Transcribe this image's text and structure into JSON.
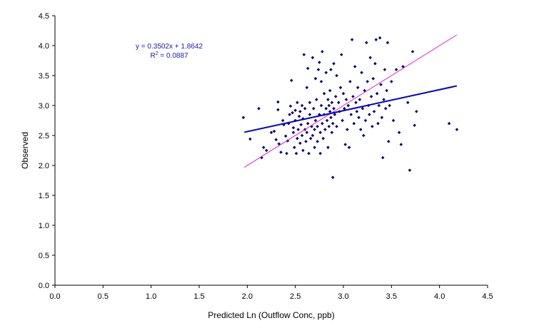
{
  "chart_data": {
    "type": "scatter",
    "title": "",
    "xlabel": "Predicted Ln (Outflow Conc, ppb)",
    "ylabel": "Observed",
    "xlim": [
      0,
      4.5
    ],
    "ylim": [
      0,
      4.5
    ],
    "x_ticks": [
      "0.0",
      "0.5",
      "1.0",
      "1.5",
      "2.0",
      "2.5",
      "3.0",
      "3.5",
      "4.0",
      "4.5"
    ],
    "y_ticks": [
      "0.0",
      "0.5",
      "1.0",
      "1.5",
      "2.0",
      "2.5",
      "3.0",
      "3.5",
      "4.0",
      "4.5"
    ],
    "grid": false,
    "legend": "none",
    "annotation": {
      "equation": "y = 0.3502x + 1.8642",
      "r2_prefix": "R",
      "r2_exp": "2",
      "r2_value": " = 0.0887"
    },
    "trendline": {
      "slope": 0.3502,
      "intercept": 1.8642,
      "x_range": [
        1.97,
        4.18
      ],
      "color": "#0000cc"
    },
    "identity_line": {
      "x_range": [
        1.97,
        4.18
      ],
      "color": "#e020d0"
    },
    "point_color": "#000066",
    "points": [
      [
        1.96,
        2.8
      ],
      [
        2.03,
        2.44
      ],
      [
        2.12,
        2.95
      ],
      [
        2.15,
        2.13
      ],
      [
        2.17,
        2.3
      ],
      [
        2.2,
        2.25
      ],
      [
        2.25,
        2.55
      ],
      [
        2.28,
        2.57
      ],
      [
        2.3,
        2.43
      ],
      [
        2.32,
        2.93
      ],
      [
        2.32,
        3.06
      ],
      [
        2.33,
        2.36
      ],
      [
        2.35,
        2.22
      ],
      [
        2.37,
        2.75
      ],
      [
        2.38,
        2.68
      ],
      [
        2.4,
        2.49
      ],
      [
        2.41,
        2.2
      ],
      [
        2.42,
        2.41
      ],
      [
        2.43,
        2.7
      ],
      [
        2.44,
        2.85
      ],
      [
        2.45,
        2.99
      ],
      [
        2.46,
        3.42
      ],
      [
        2.47,
        2.88
      ],
      [
        2.48,
        2.55
      ],
      [
        2.48,
        2.63
      ],
      [
        2.49,
        2.3
      ],
      [
        2.5,
        2.75
      ],
      [
        2.5,
        2.92
      ],
      [
        2.51,
        2.2
      ],
      [
        2.52,
        2.45
      ],
      [
        2.52,
        3.05
      ],
      [
        2.53,
        2.6
      ],
      [
        2.54,
        2.82
      ],
      [
        2.55,
        2.37
      ],
      [
        2.55,
        2.9
      ],
      [
        2.56,
        2.68
      ],
      [
        2.57,
        2.5
      ],
      [
        2.57,
        3.0
      ],
      [
        2.58,
        2.25
      ],
      [
        2.58,
        2.78
      ],
      [
        2.59,
        3.85
      ],
      [
        2.6,
        2.6
      ],
      [
        2.6,
        2.95
      ],
      [
        2.61,
        2.4
      ],
      [
        2.62,
        2.55
      ],
      [
        2.62,
        3.3
      ],
      [
        2.63,
        2.7
      ],
      [
        2.63,
        3.62
      ],
      [
        2.64,
        2.2
      ],
      [
        2.65,
        2.85
      ],
      [
        2.65,
        3.05
      ],
      [
        2.66,
        2.45
      ],
      [
        2.67,
        2.65
      ],
      [
        2.68,
        3.8
      ],
      [
        2.68,
        2.5
      ],
      [
        2.69,
        2.95
      ],
      [
        2.7,
        2.3
      ],
      [
        2.7,
        2.6
      ],
      [
        2.71,
        3.45
      ],
      [
        2.71,
        2.75
      ],
      [
        2.72,
        3.1
      ],
      [
        2.73,
        2.4
      ],
      [
        2.73,
        2.65
      ],
      [
        2.74,
        3.6
      ],
      [
        2.75,
        2.85
      ],
      [
        2.75,
        3.72
      ],
      [
        2.76,
        2.2
      ],
      [
        2.76,
        2.55
      ],
      [
        2.77,
        3.0
      ],
      [
        2.77,
        3.4
      ],
      [
        2.78,
        2.7
      ],
      [
        2.78,
        3.9
      ],
      [
        2.79,
        2.45
      ],
      [
        2.8,
        2.85
      ],
      [
        2.8,
        3.2
      ],
      [
        2.81,
        2.6
      ],
      [
        2.82,
        2.95
      ],
      [
        2.82,
        3.55
      ],
      [
        2.83,
        2.75
      ],
      [
        2.84,
        2.3
      ],
      [
        2.84,
        3.1
      ],
      [
        2.85,
        2.65
      ],
      [
        2.85,
        3.0
      ],
      [
        2.86,
        2.9
      ],
      [
        2.86,
        3.25
      ],
      [
        2.87,
        2.8
      ],
      [
        2.87,
        3.6
      ],
      [
        2.88,
        2.55
      ],
      [
        2.88,
        3.05
      ],
      [
        2.89,
        2.7
      ],
      [
        2.89,
        1.8
      ],
      [
        2.9,
        2.95
      ],
      [
        2.9,
        3.7
      ],
      [
        2.91,
        2.85
      ],
      [
        2.92,
        3.15
      ],
      [
        2.93,
        2.65
      ],
      [
        2.93,
        3.5
      ],
      [
        2.95,
        3.05
      ],
      [
        2.96,
        2.9
      ],
      [
        2.97,
        3.3
      ],
      [
        2.98,
        3.85
      ],
      [
        2.99,
        2.75
      ],
      [
        3.0,
        3.2
      ],
      [
        3.01,
        2.95
      ],
      [
        3.02,
        2.35
      ],
      [
        3.03,
        3.1
      ],
      [
        3.04,
        2.6
      ],
      [
        3.05,
        3.0
      ],
      [
        3.06,
        2.3
      ],
      [
        3.07,
        3.4
      ],
      [
        3.08,
        2.85
      ],
      [
        3.09,
        4.1
      ],
      [
        3.1,
        3.15
      ],
      [
        3.11,
        2.7
      ],
      [
        3.12,
        3.65
      ],
      [
        3.13,
        3.05
      ],
      [
        3.14,
        2.9
      ],
      [
        3.15,
        3.3
      ],
      [
        3.16,
        2.8
      ],
      [
        3.17,
        3.1
      ],
      [
        3.18,
        2.6
      ],
      [
        3.19,
        3.55
      ],
      [
        3.2,
        2.95
      ],
      [
        3.21,
        2.5
      ],
      [
        3.22,
        3.25
      ],
      [
        3.23,
        2.75
      ],
      [
        3.24,
        4.05
      ],
      [
        3.25,
        3.4
      ],
      [
        3.26,
        3.0
      ],
      [
        3.27,
        2.85
      ],
      [
        3.28,
        3.8
      ],
      [
        3.29,
        3.15
      ],
      [
        3.3,
        2.65
      ],
      [
        3.31,
        3.45
      ],
      [
        3.32,
        2.9
      ],
      [
        3.33,
        3.7
      ],
      [
        3.34,
        4.1
      ],
      [
        3.35,
        3.2
      ],
      [
        3.36,
        2.7
      ],
      [
        3.37,
        3.0
      ],
      [
        3.38,
        4.13
      ],
      [
        3.39,
        3.35
      ],
      [
        3.4,
        2.8
      ],
      [
        3.41,
        2.13
      ],
      [
        3.42,
        3.1
      ],
      [
        3.43,
        3.6
      ],
      [
        3.44,
        2.95
      ],
      [
        3.45,
        3.25
      ],
      [
        3.46,
        4.05
      ],
      [
        3.47,
        2.4
      ],
      [
        3.48,
        3.0
      ],
      [
        3.5,
        3.4
      ],
      [
        3.52,
        2.75
      ],
      [
        3.55,
        3.6
      ],
      [
        3.58,
        2.55
      ],
      [
        3.6,
        2.35
      ],
      [
        3.62,
        3.65
      ],
      [
        3.67,
        3.05
      ],
      [
        3.69,
        1.92
      ],
      [
        3.72,
        3.9
      ],
      [
        3.74,
        2.67
      ],
      [
        3.76,
        2.9
      ],
      [
        4.1,
        2.7
      ],
      [
        4.18,
        2.6
      ]
    ]
  }
}
